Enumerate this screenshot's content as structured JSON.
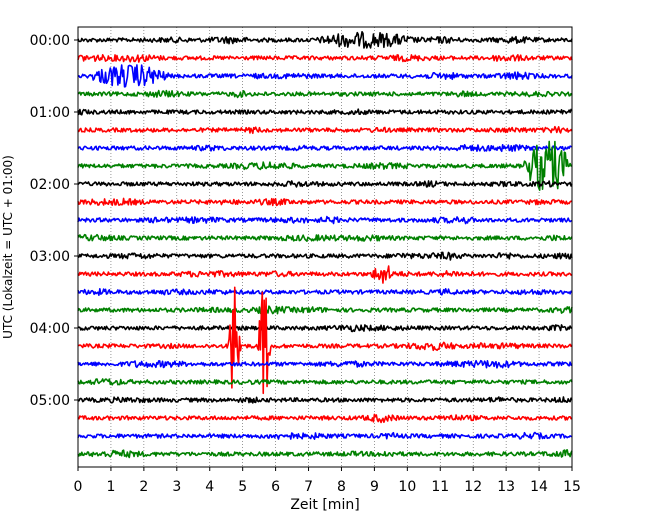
{
  "chart_data": {
    "type": "line",
    "xlabel": "Zeit  [min]",
    "ylabel": "UTC (Lokalzeit = UTC + 01:00)",
    "xlim": [
      0,
      15
    ],
    "x_ticks": [
      0,
      1,
      2,
      3,
      4,
      5,
      6,
      7,
      8,
      9,
      10,
      11,
      12,
      13,
      14,
      15
    ],
    "y_tick_labels": [
      "00:00",
      "01:00",
      "02:00",
      "03:00",
      "04:00",
      "05:00"
    ],
    "y_tick_rows": [
      0,
      4,
      8,
      12,
      16,
      20
    ],
    "grid": "vertical dotted",
    "row_interval_minutes": 15,
    "trace_colors": [
      "#000000",
      "#ff0000",
      "#0000ff",
      "#008000"
    ],
    "rows": 24,
    "events": [
      {
        "row": 2,
        "start_min": 0.3,
        "end_min": 2.8,
        "amplitude": 0.55
      },
      {
        "row": 7,
        "start_min": 13.5,
        "end_min": 15.0,
        "amplitude": 1.4
      },
      {
        "row": 17,
        "start_min": 4.55,
        "end_min": 4.95,
        "amplitude": 3.5
      },
      {
        "row": 17,
        "start_min": 5.45,
        "end_min": 5.85,
        "amplitude": 3.2
      },
      {
        "row": 13,
        "start_min": 8.9,
        "end_min": 9.6,
        "amplitude": 0.45
      },
      {
        "row": 0,
        "start_min": 7.2,
        "end_min": 10.2,
        "amplitude": 0.35
      }
    ]
  }
}
